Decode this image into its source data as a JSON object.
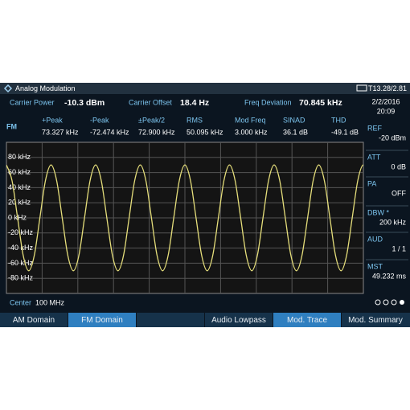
{
  "header": {
    "title": "Analog Modulation",
    "trigger": "T1",
    "battery": "3.28/2.81",
    "date": "2/2/2016",
    "time": "20:09"
  },
  "summary": [
    {
      "label": "Carrier Power",
      "value": "-10.3 dBm"
    },
    {
      "label": "Carrier Offset",
      "value": "18.4 Hz"
    },
    {
      "label": "Freq Deviation",
      "value": "70.845 kHz"
    }
  ],
  "mode": "FM",
  "measurements": [
    {
      "label": "+Peak",
      "value": "73.327 kHz"
    },
    {
      "label": "-Peak",
      "value": "-72.474 kHz"
    },
    {
      "label": "±Peak/2",
      "value": "72.900 kHz"
    },
    {
      "label": "RMS",
      "value": "50.095 kHz"
    },
    {
      "label": "Mod Freq",
      "value": "3.000 kHz"
    },
    {
      "label": "SINAD",
      "value": "36.1 dB"
    },
    {
      "label": "THD",
      "value": "-49.1 dB"
    }
  ],
  "settings": [
    {
      "label": "REF",
      "value": "-20 dBm"
    },
    {
      "label": "ATT",
      "value": "0 dB"
    },
    {
      "label": "PA",
      "value": "OFF"
    },
    {
      "label": "DBW *",
      "value": "200 kHz"
    },
    {
      "label": "AUD",
      "value": "1 / 1"
    },
    {
      "label": "MST",
      "value": "49.232 ms"
    }
  ],
  "center": {
    "label": "Center",
    "value": "100 MHz"
  },
  "softkeys": [
    "AM Domain",
    "FM Domain",
    "Audio Lowpass",
    "Mod. Trace",
    "Mod. Summary"
  ],
  "chart_data": {
    "type": "line",
    "ylim": [
      -100,
      100
    ],
    "yticks": [
      {
        "value": 80,
        "label": "80 kHz"
      },
      {
        "value": 60,
        "label": "60 kHz"
      },
      {
        "value": 40,
        "label": "40 kHz"
      },
      {
        "value": 20,
        "label": "20 kHz"
      },
      {
        "value": 0,
        "label": "0 kHz"
      },
      {
        "value": -20,
        "label": "-20 kHz"
      },
      {
        "value": -40,
        "label": "-40 kHz"
      },
      {
        "value": -60,
        "label": "-60 kHz"
      },
      {
        "value": -80,
        "label": "-80 kHz"
      }
    ],
    "grid": true,
    "series": [
      {
        "color": "#e4dd7a",
        "values": [
          70,
          49.5,
          0,
          -49.5,
          -70,
          -49.5,
          0,
          49.5,
          70,
          49.5,
          0,
          -49.5,
          -70,
          -49.5,
          0,
          49.5,
          70,
          49.5,
          0,
          -49.5,
          -70,
          -49.5,
          0,
          49.5,
          70,
          49.5,
          0,
          -49.5,
          -70,
          -49.5,
          0,
          49.5,
          70,
          49.5,
          0,
          -49.5,
          -70,
          -49.5,
          0,
          49.5,
          70,
          49.5,
          0,
          -49.5,
          -70,
          -49.5,
          0,
          49.5,
          70,
          49.5,
          0,
          -49.5,
          -70,
          -49.5,
          0,
          49.5,
          70,
          49.5,
          0,
          -49.5,
          -70,
          -49.5,
          0,
          49.5,
          70,
          49.5,
          0
        ]
      }
    ]
  }
}
